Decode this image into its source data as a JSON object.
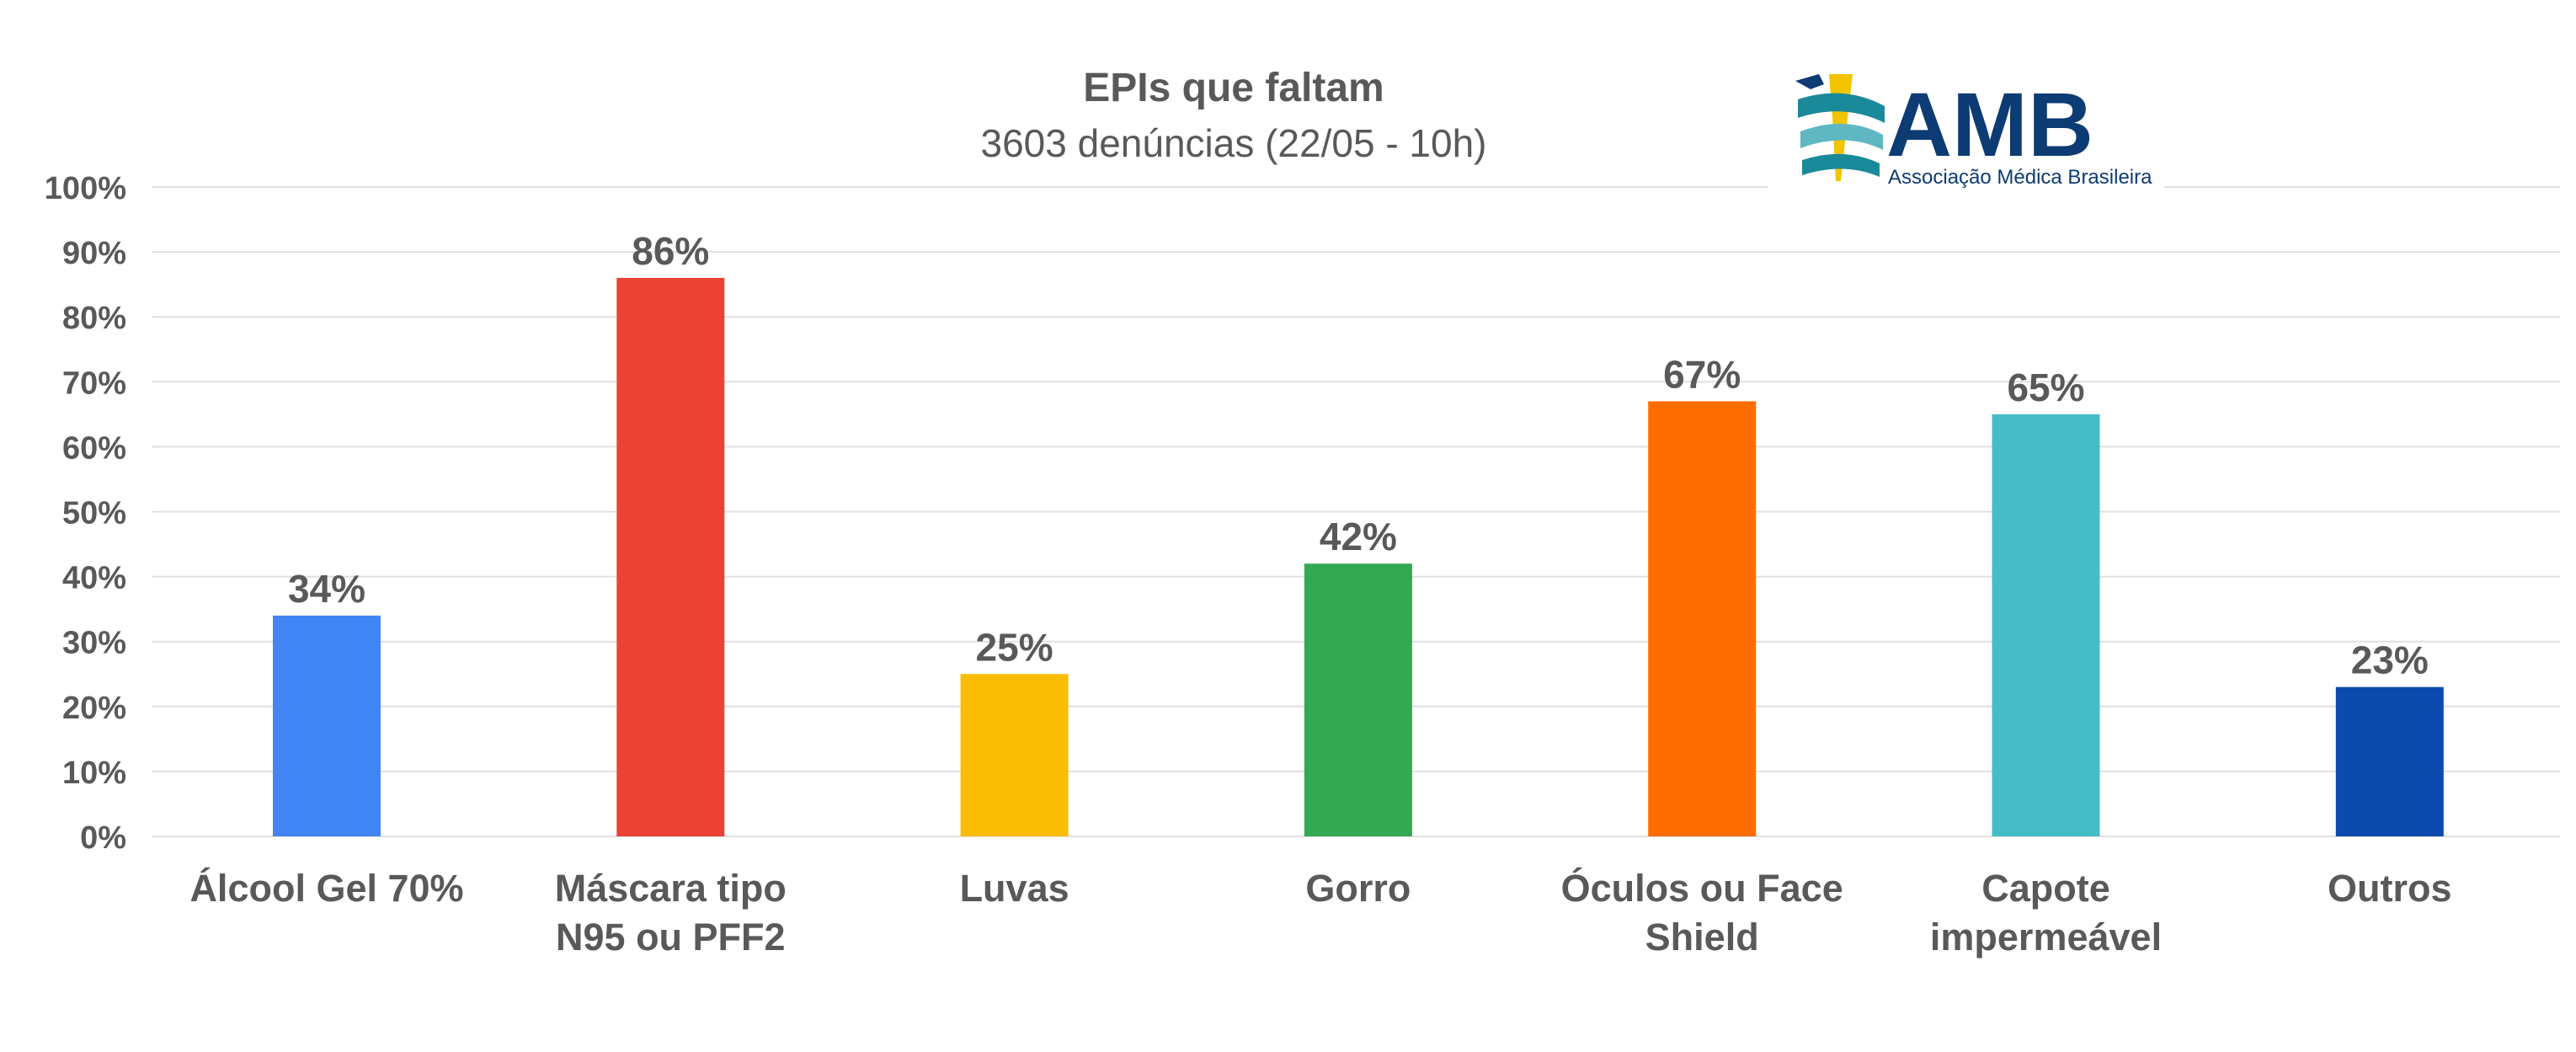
{
  "chart_data": {
    "type": "bar",
    "title": "EPIs que faltam",
    "subtitle": "3603 denúncias (22/05 - 10h)",
    "categories": [
      [
        "Álcool Gel 70%"
      ],
      [
        "Máscara tipo",
        "N95 ou PFF2"
      ],
      [
        "Luvas"
      ],
      [
        "Gorro"
      ],
      [
        "Óculos ou Face",
        "Shield"
      ],
      [
        "Capote",
        "impermeável"
      ],
      [
        "Outros"
      ]
    ],
    "values": [
      34,
      86,
      25,
      42,
      67,
      65,
      23
    ],
    "data_labels": [
      "34%",
      "86%",
      "25%",
      "42%",
      "67%",
      "65%",
      "23%"
    ],
    "bar_colors": [
      "#4285F4",
      "#EA4335",
      "#FBBC04",
      "#34A853",
      "#FF6D01",
      "#46BDC6",
      "#0B4BAD"
    ],
    "y_ticks": [
      "0%",
      "10%",
      "20%",
      "30%",
      "40%",
      "50%",
      "60%",
      "70%",
      "80%",
      "90%",
      "100%"
    ],
    "ylim": [
      0,
      100
    ],
    "grid": true,
    "xlabel": "",
    "ylabel": ""
  },
  "logo": {
    "name": "AMB",
    "tagline": "Associação Médica Brasileira",
    "colors": {
      "navy": "#0D3B73",
      "teal": "#1A8A9A",
      "gold": "#F2C500"
    }
  },
  "colors": {
    "text": "#595959",
    "grid": "#E0E0E0"
  }
}
